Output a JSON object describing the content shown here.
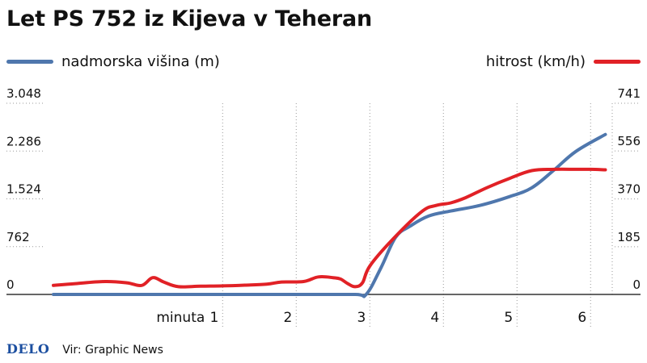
{
  "title": "Let PS 752 iz Kijeva v Teheran",
  "source": "Vir: Graphic News",
  "brand": "DELO",
  "colors": {
    "altitude": "#4f77ad",
    "speed": "#e12126",
    "grid": "#999999",
    "axis": "#333333"
  },
  "chart_data": {
    "type": "line",
    "title": "Let PS 752 iz Kijeva v Teheran",
    "x_axis": {
      "label": "minuta",
      "range": [
        -1.3,
        6.25
      ],
      "ticks": [
        1,
        2,
        3,
        4,
        5,
        6
      ],
      "tick_labels": [
        "1",
        "2",
        "3",
        "4",
        "5",
        "6"
      ]
    },
    "y_left": {
      "label": "nadmorska višina (m)",
      "range": [
        0,
        3048
      ],
      "ticks": [
        0,
        762,
        1524,
        2286,
        3048
      ],
      "tick_labels": [
        "0",
        "762",
        "1.524",
        "2.286",
        "3.048"
      ]
    },
    "y_right": {
      "label": "hitrost (km/h)",
      "range": [
        0,
        741
      ],
      "ticks": [
        0,
        185,
        370,
        556,
        741
      ],
      "tick_labels": [
        "0",
        "185",
        "370",
        "556",
        "741"
      ]
    },
    "grid": {
      "vertical": true,
      "horizontal": false,
      "style": "dotted"
    },
    "legend": {
      "placement": "top"
    },
    "series": [
      {
        "name": "nadmorska višina (m)",
        "axis": "left",
        "x": [
          -1.3,
          0,
          1,
          2,
          2.8,
          2.95,
          3.15,
          3.35,
          3.55,
          3.8,
          4.1,
          4.5,
          4.9,
          5.2,
          5.5,
          5.8,
          6.2
        ],
        "y": [
          0,
          0,
          0,
          0,
          0,
          0,
          420,
          910,
          1090,
          1250,
          1330,
          1420,
          1560,
          1700,
          1980,
          2280,
          2550
        ]
      },
      {
        "name": "hitrost (km/h)",
        "axis": "right",
        "x": [
          -1.3,
          -1.0,
          -0.6,
          -0.3,
          -0.1,
          0.05,
          0.2,
          0.4,
          0.7,
          1.0,
          1.3,
          1.6,
          1.8,
          2.1,
          2.3,
          2.5,
          2.6,
          2.7,
          2.8,
          2.9,
          3.0,
          3.3,
          3.7,
          3.9,
          4.1,
          4.3,
          4.6,
          4.9,
          5.2,
          5.5,
          5.8,
          6.0,
          6.2
        ],
        "y": [
          35,
          42,
          50,
          45,
          35,
          65,
          48,
          30,
          32,
          33,
          36,
          40,
          48,
          50,
          68,
          65,
          60,
          42,
          30,
          45,
          110,
          210,
          320,
          345,
          355,
          375,
          415,
          450,
          480,
          485,
          485,
          485,
          483
        ]
      }
    ]
  }
}
